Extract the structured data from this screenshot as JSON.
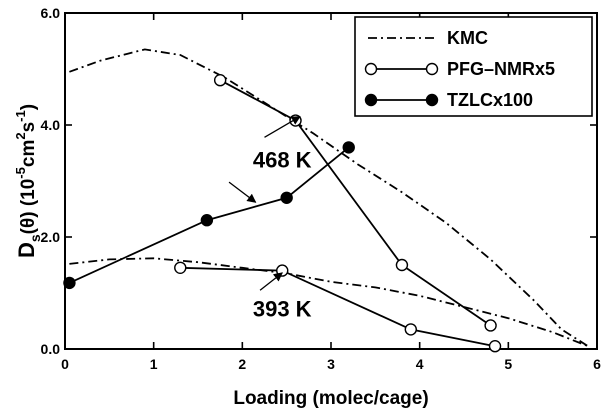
{
  "chart_data": {
    "type": "line",
    "title": "",
    "xlabel": "Loading (molec/cage)",
    "ylabel": {
      "main": "D",
      "sub": "s",
      "rest": "(θ) (10",
      "exp1": "-5",
      "unit": "cm",
      "exp2": "2",
      "s": "s",
      "exp3": "-1",
      "close": ")"
    },
    "xlim": [
      0,
      6
    ],
    "ylim": [
      0,
      6
    ],
    "xticks": [
      {
        "value": 0,
        "label": "0"
      },
      {
        "value": 1,
        "label": "1"
      },
      {
        "value": 2,
        "label": "2"
      },
      {
        "value": 3,
        "label": "3"
      },
      {
        "value": 4,
        "label": "4"
      },
      {
        "value": 5,
        "label": "5"
      },
      {
        "value": 6,
        "label": "6"
      }
    ],
    "yticks": [
      {
        "value": 0,
        "label": "0.0"
      },
      {
        "value": 2,
        "label": "2.0"
      },
      {
        "value": 4,
        "label": "4.0"
      },
      {
        "value": 6,
        "label": "6.0"
      }
    ],
    "grid": false,
    "legend_position": "top-right",
    "series": [
      {
        "name": "KMC",
        "style": "dashdot",
        "marker": "none",
        "color": "#000000",
        "curves": [
          {
            "x": [
              0.05,
              0.4,
              0.9,
              1.3,
              1.8,
              2.3,
              2.8,
              3.3,
              3.8,
              4.3,
              4.8,
              5.3,
              5.6,
              5.9
            ],
            "y": [
              4.95,
              5.15,
              5.35,
              5.25,
              4.85,
              4.35,
              3.85,
              3.3,
              2.8,
              2.25,
              1.6,
              0.85,
              0.35,
              0.05
            ]
          },
          {
            "x": [
              0.05,
              0.5,
              1.0,
              1.5,
              2.0,
              2.5,
              3.0,
              3.5,
              4.0,
              4.5,
              5.0,
              5.5,
              5.9
            ],
            "y": [
              1.52,
              1.6,
              1.62,
              1.55,
              1.45,
              1.35,
              1.2,
              1.1,
              0.95,
              0.75,
              0.55,
              0.3,
              0.05
            ]
          }
        ]
      },
      {
        "name": "PFG–NMRx5",
        "style": "solid",
        "marker": "open-circle",
        "color": "#000000",
        "curves": [
          {
            "x": [
              1.75,
              2.6,
              3.8,
              4.8
            ],
            "y": [
              4.8,
              4.08,
              1.5,
              0.42
            ]
          },
          {
            "x": [
              1.3,
              2.45,
              3.9,
              4.85
            ],
            "y": [
              1.45,
              1.4,
              0.35,
              0.05
            ]
          }
        ]
      },
      {
        "name": "TZLCx100",
        "style": "solid",
        "marker": "filled-circle",
        "color": "#000000",
        "curves": [
          {
            "x": [
              0.05,
              1.6,
              2.5,
              3.2
            ],
            "y": [
              1.18,
              2.3,
              2.7,
              3.6
            ]
          }
        ]
      }
    ],
    "annotations": [
      {
        "text": "468 K",
        "label_at": [
          2.45,
          3.38
        ],
        "arrows": [
          {
            "from": [
              2.25,
              3.78
            ],
            "to": [
              2.65,
              4.15
            ]
          },
          {
            "from": [
              1.85,
              2.98
            ],
            "to": [
              2.15,
              2.62
            ]
          }
        ]
      },
      {
        "text": "393 K",
        "label_at": [
          2.45,
          0.72
        ],
        "arrows": [
          {
            "from": [
              2.2,
              1.05
            ],
            "to": [
              2.45,
              1.36
            ]
          }
        ]
      }
    ]
  }
}
